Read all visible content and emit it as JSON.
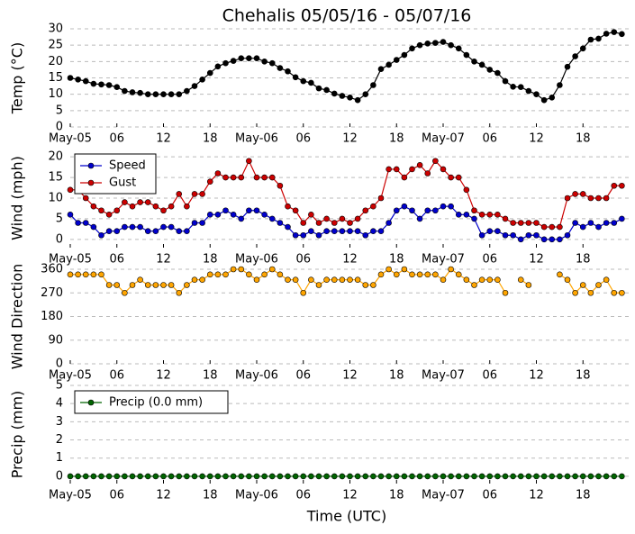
{
  "chart_data": [
    {
      "type": "line",
      "title": "Chehalis 05/05/16 - 05/07/16",
      "ylabel": "Temp (°C)",
      "x": [
        0,
        1,
        2,
        3,
        4,
        5,
        6,
        7,
        8,
        9,
        10,
        11,
        12,
        13,
        14,
        15,
        16,
        17,
        18,
        19,
        20,
        21,
        22,
        23,
        24,
        25,
        26,
        27,
        28,
        29,
        30,
        31,
        32,
        33,
        34,
        35,
        36,
        37,
        38,
        39,
        40,
        41,
        42,
        43,
        44,
        45,
        46,
        47,
        48,
        49,
        50,
        51,
        52,
        53,
        54,
        55,
        56,
        57,
        58,
        59,
        60,
        61,
        62,
        63,
        64,
        65,
        66,
        67,
        68,
        69,
        70,
        71
      ],
      "xlim": [
        0,
        72
      ],
      "xticks": [
        {
          "value": 0,
          "label": "May-05"
        },
        {
          "value": 6,
          "label": "06"
        },
        {
          "value": 12,
          "label": "12"
        },
        {
          "value": 18,
          "label": "18"
        },
        {
          "value": 24,
          "label": "May-06"
        },
        {
          "value": 30,
          "label": "06"
        },
        {
          "value": 36,
          "label": "12"
        },
        {
          "value": 42,
          "label": "18"
        },
        {
          "value": 48,
          "label": "May-07"
        },
        {
          "value": 54,
          "label": "06"
        },
        {
          "value": 60,
          "label": "12"
        },
        {
          "value": 66,
          "label": "18"
        }
      ],
      "ylim": [
        0,
        30
      ],
      "yticks": [
        0,
        5,
        10,
        15,
        20,
        25,
        30
      ],
      "grid": true,
      "series": [
        {
          "color": "#000000",
          "values": [
            15,
            14.5,
            14,
            13.2,
            13,
            12.8,
            12.2,
            11,
            10.6,
            10.4,
            10,
            10,
            10,
            10,
            10,
            11,
            12.5,
            14.5,
            16.5,
            18.5,
            19.5,
            20.2,
            21,
            21,
            21,
            20,
            19.5,
            18,
            17,
            15.2,
            14,
            13.5,
            11.8,
            11.3,
            10.2,
            9.5,
            9,
            8.2,
            10,
            12.8,
            17.7,
            19,
            20.5,
            22,
            24,
            25,
            25.5,
            25.7,
            26,
            25,
            24,
            22,
            20,
            19,
            17.5,
            16.5,
            14,
            12.3,
            12.2,
            11,
            10,
            8.2,
            9,
            12.8,
            18.4,
            21.6,
            24,
            26.7,
            27,
            28.5,
            29,
            28.4
          ]
        }
      ]
    },
    {
      "type": "line",
      "ylabel": "Wind (mph)",
      "legend": "upper left",
      "x": [
        0,
        1,
        2,
        3,
        4,
        5,
        6,
        7,
        8,
        9,
        10,
        11,
        12,
        13,
        14,
        15,
        16,
        17,
        18,
        19,
        20,
        21,
        22,
        23,
        24,
        25,
        26,
        27,
        28,
        29,
        30,
        31,
        32,
        33,
        34,
        35,
        36,
        37,
        38,
        39,
        40,
        41,
        42,
        43,
        44,
        45,
        46,
        47,
        48,
        49,
        50,
        51,
        52,
        53,
        54,
        55,
        56,
        57,
        58,
        59,
        60,
        61,
        62,
        63,
        64,
        65,
        66,
        67,
        68,
        69,
        70,
        71
      ],
      "xlim": [
        0,
        72
      ],
      "xticks": [
        {
          "value": 0,
          "label": "May-05"
        },
        {
          "value": 6,
          "label": "06"
        },
        {
          "value": 12,
          "label": "12"
        },
        {
          "value": 18,
          "label": "18"
        },
        {
          "value": 24,
          "label": "May-06"
        },
        {
          "value": 30,
          "label": "06"
        },
        {
          "value": 36,
          "label": "12"
        },
        {
          "value": 42,
          "label": "18"
        },
        {
          "value": 48,
          "label": "May-07"
        },
        {
          "value": 54,
          "label": "06"
        },
        {
          "value": 60,
          "label": "12"
        },
        {
          "value": 66,
          "label": "18"
        }
      ],
      "ylim": [
        -2,
        22
      ],
      "yticks": [
        0,
        5,
        10,
        15,
        20
      ],
      "grid": true,
      "series": [
        {
          "name": "Speed",
          "color": "#0000cc",
          "values": [
            6,
            4,
            4,
            3,
            1,
            2,
            2,
            3,
            3,
            3,
            2,
            2,
            3,
            3,
            2,
            2,
            4,
            4,
            6,
            6,
            7,
            6,
            5,
            7,
            7,
            6,
            5,
            4,
            3,
            1,
            1,
            2,
            1,
            2,
            2,
            2,
            2,
            2,
            1,
            2,
            2,
            4,
            7,
            8,
            7,
            5,
            7,
            7,
            8,
            8,
            6,
            6,
            5,
            1,
            2,
            2,
            1,
            1,
            0,
            1,
            1,
            0,
            0,
            0,
            1,
            4,
            3,
            4,
            3,
            4,
            4,
            5
          ]
        },
        {
          "name": "Gust",
          "color": "#cc0000",
          "values": [
            12,
            12,
            10,
            8,
            7,
            6,
            7,
            9,
            8,
            9,
            9,
            8,
            7,
            8,
            11,
            8,
            11,
            11,
            14,
            16,
            15,
            15,
            15,
            19,
            15,
            15,
            15,
            13,
            8,
            7,
            4,
            6,
            4,
            5,
            4,
            5,
            4,
            5,
            7,
            8,
            10,
            17,
            17,
            15,
            17,
            18,
            16,
            19,
            17,
            15,
            15,
            12,
            7,
            6,
            6,
            6,
            5,
            4,
            4,
            4,
            4,
            3,
            3,
            3,
            10,
            11,
            11,
            10,
            10,
            10,
            13,
            13
          ]
        }
      ]
    },
    {
      "type": "line",
      "ylabel": "Wind Direction",
      "x": [
        0,
        1,
        2,
        3,
        4,
        5,
        6,
        7,
        8,
        9,
        10,
        11,
        12,
        13,
        14,
        15,
        16,
        17,
        18,
        19,
        20,
        21,
        22,
        23,
        24,
        25,
        26,
        27,
        28,
        29,
        30,
        31,
        32,
        33,
        34,
        35,
        36,
        37,
        38,
        39,
        40,
        41,
        42,
        43,
        44,
        45,
        46,
        47,
        48,
        49,
        50,
        51,
        52,
        53,
        54,
        55,
        56,
        57,
        58,
        59,
        60,
        61,
        62,
        63,
        64,
        65,
        66,
        67,
        68,
        69,
        70,
        71
      ],
      "xlim": [
        0,
        72
      ],
      "xticks": [
        {
          "value": 0,
          "label": "May-05"
        },
        {
          "value": 6,
          "label": "06"
        },
        {
          "value": 12,
          "label": "12"
        },
        {
          "value": 18,
          "label": "18"
        },
        {
          "value": 24,
          "label": "May-06"
        },
        {
          "value": 30,
          "label": "06"
        },
        {
          "value": 36,
          "label": "12"
        },
        {
          "value": 42,
          "label": "18"
        },
        {
          "value": 48,
          "label": "May-07"
        },
        {
          "value": 54,
          "label": "06"
        },
        {
          "value": 60,
          "label": "12"
        },
        {
          "value": 66,
          "label": "18"
        }
      ],
      "ylim": [
        0,
        360
      ],
      "yticks": [
        0,
        90,
        180,
        270,
        360
      ],
      "grid": true,
      "series": [
        {
          "color": "#ffa500",
          "values": [
            340,
            340,
            340,
            340,
            340,
            300,
            300,
            270,
            300,
            320,
            300,
            300,
            300,
            300,
            270,
            300,
            320,
            320,
            340,
            340,
            340,
            360,
            360,
            340,
            320,
            340,
            360,
            340,
            320,
            320,
            270,
            320,
            300,
            320,
            320,
            320,
            320,
            320,
            300,
            300,
            340,
            360,
            340,
            360,
            340,
            340,
            340,
            340,
            320,
            360,
            340,
            320,
            300,
            320,
            320,
            320,
            270,
            null,
            320,
            300,
            null,
            null,
            null,
            340,
            320,
            270,
            300,
            270,
            300,
            320,
            270,
            270
          ]
        }
      ]
    },
    {
      "type": "line",
      "ylabel": "Precip (mm)",
      "xlabel": "Time (UTC)",
      "legend": "upper left",
      "x": [
        0,
        1,
        2,
        3,
        4,
        5,
        6,
        7,
        8,
        9,
        10,
        11,
        12,
        13,
        14,
        15,
        16,
        17,
        18,
        19,
        20,
        21,
        22,
        23,
        24,
        25,
        26,
        27,
        28,
        29,
        30,
        31,
        32,
        33,
        34,
        35,
        36,
        37,
        38,
        39,
        40,
        41,
        42,
        43,
        44,
        45,
        46,
        47,
        48,
        49,
        50,
        51,
        52,
        53,
        54,
        55,
        56,
        57,
        58,
        59,
        60,
        61,
        62,
        63,
        64,
        65,
        66,
        67,
        68,
        69,
        70,
        71
      ],
      "xlim": [
        0,
        72
      ],
      "xticks": [
        {
          "value": 0,
          "label": "May-05"
        },
        {
          "value": 6,
          "label": "06"
        },
        {
          "value": 12,
          "label": "12"
        },
        {
          "value": 18,
          "label": "18"
        },
        {
          "value": 24,
          "label": "May-06"
        },
        {
          "value": 30,
          "label": "06"
        },
        {
          "value": 36,
          "label": "12"
        },
        {
          "value": 42,
          "label": "18"
        },
        {
          "value": 48,
          "label": "May-07"
        },
        {
          "value": 54,
          "label": "06"
        },
        {
          "value": 60,
          "label": "12"
        },
        {
          "value": 66,
          "label": "18"
        }
      ],
      "ylim": [
        -0.4,
        5
      ],
      "yticks": [
        0,
        1,
        2,
        3,
        4,
        5
      ],
      "grid": true,
      "series": [
        {
          "name": "Precip (0.0 mm)",
          "color": "#006400",
          "values": [
            0,
            0,
            0,
            0,
            0,
            0,
            0,
            0,
            0,
            0,
            0,
            0,
            0,
            0,
            0,
            0,
            0,
            0,
            0,
            0,
            0,
            0,
            0,
            0,
            0,
            0,
            0,
            0,
            0,
            0,
            0,
            0,
            0,
            0,
            0,
            0,
            0,
            0,
            0,
            0,
            0,
            0,
            0,
            0,
            0,
            0,
            0,
            0,
            0,
            0,
            0,
            0,
            0,
            0,
            0,
            0,
            0,
            0,
            0,
            0,
            0,
            0,
            0,
            0,
            0,
            0,
            0,
            0,
            0,
            0,
            0,
            0
          ]
        }
      ]
    }
  ]
}
